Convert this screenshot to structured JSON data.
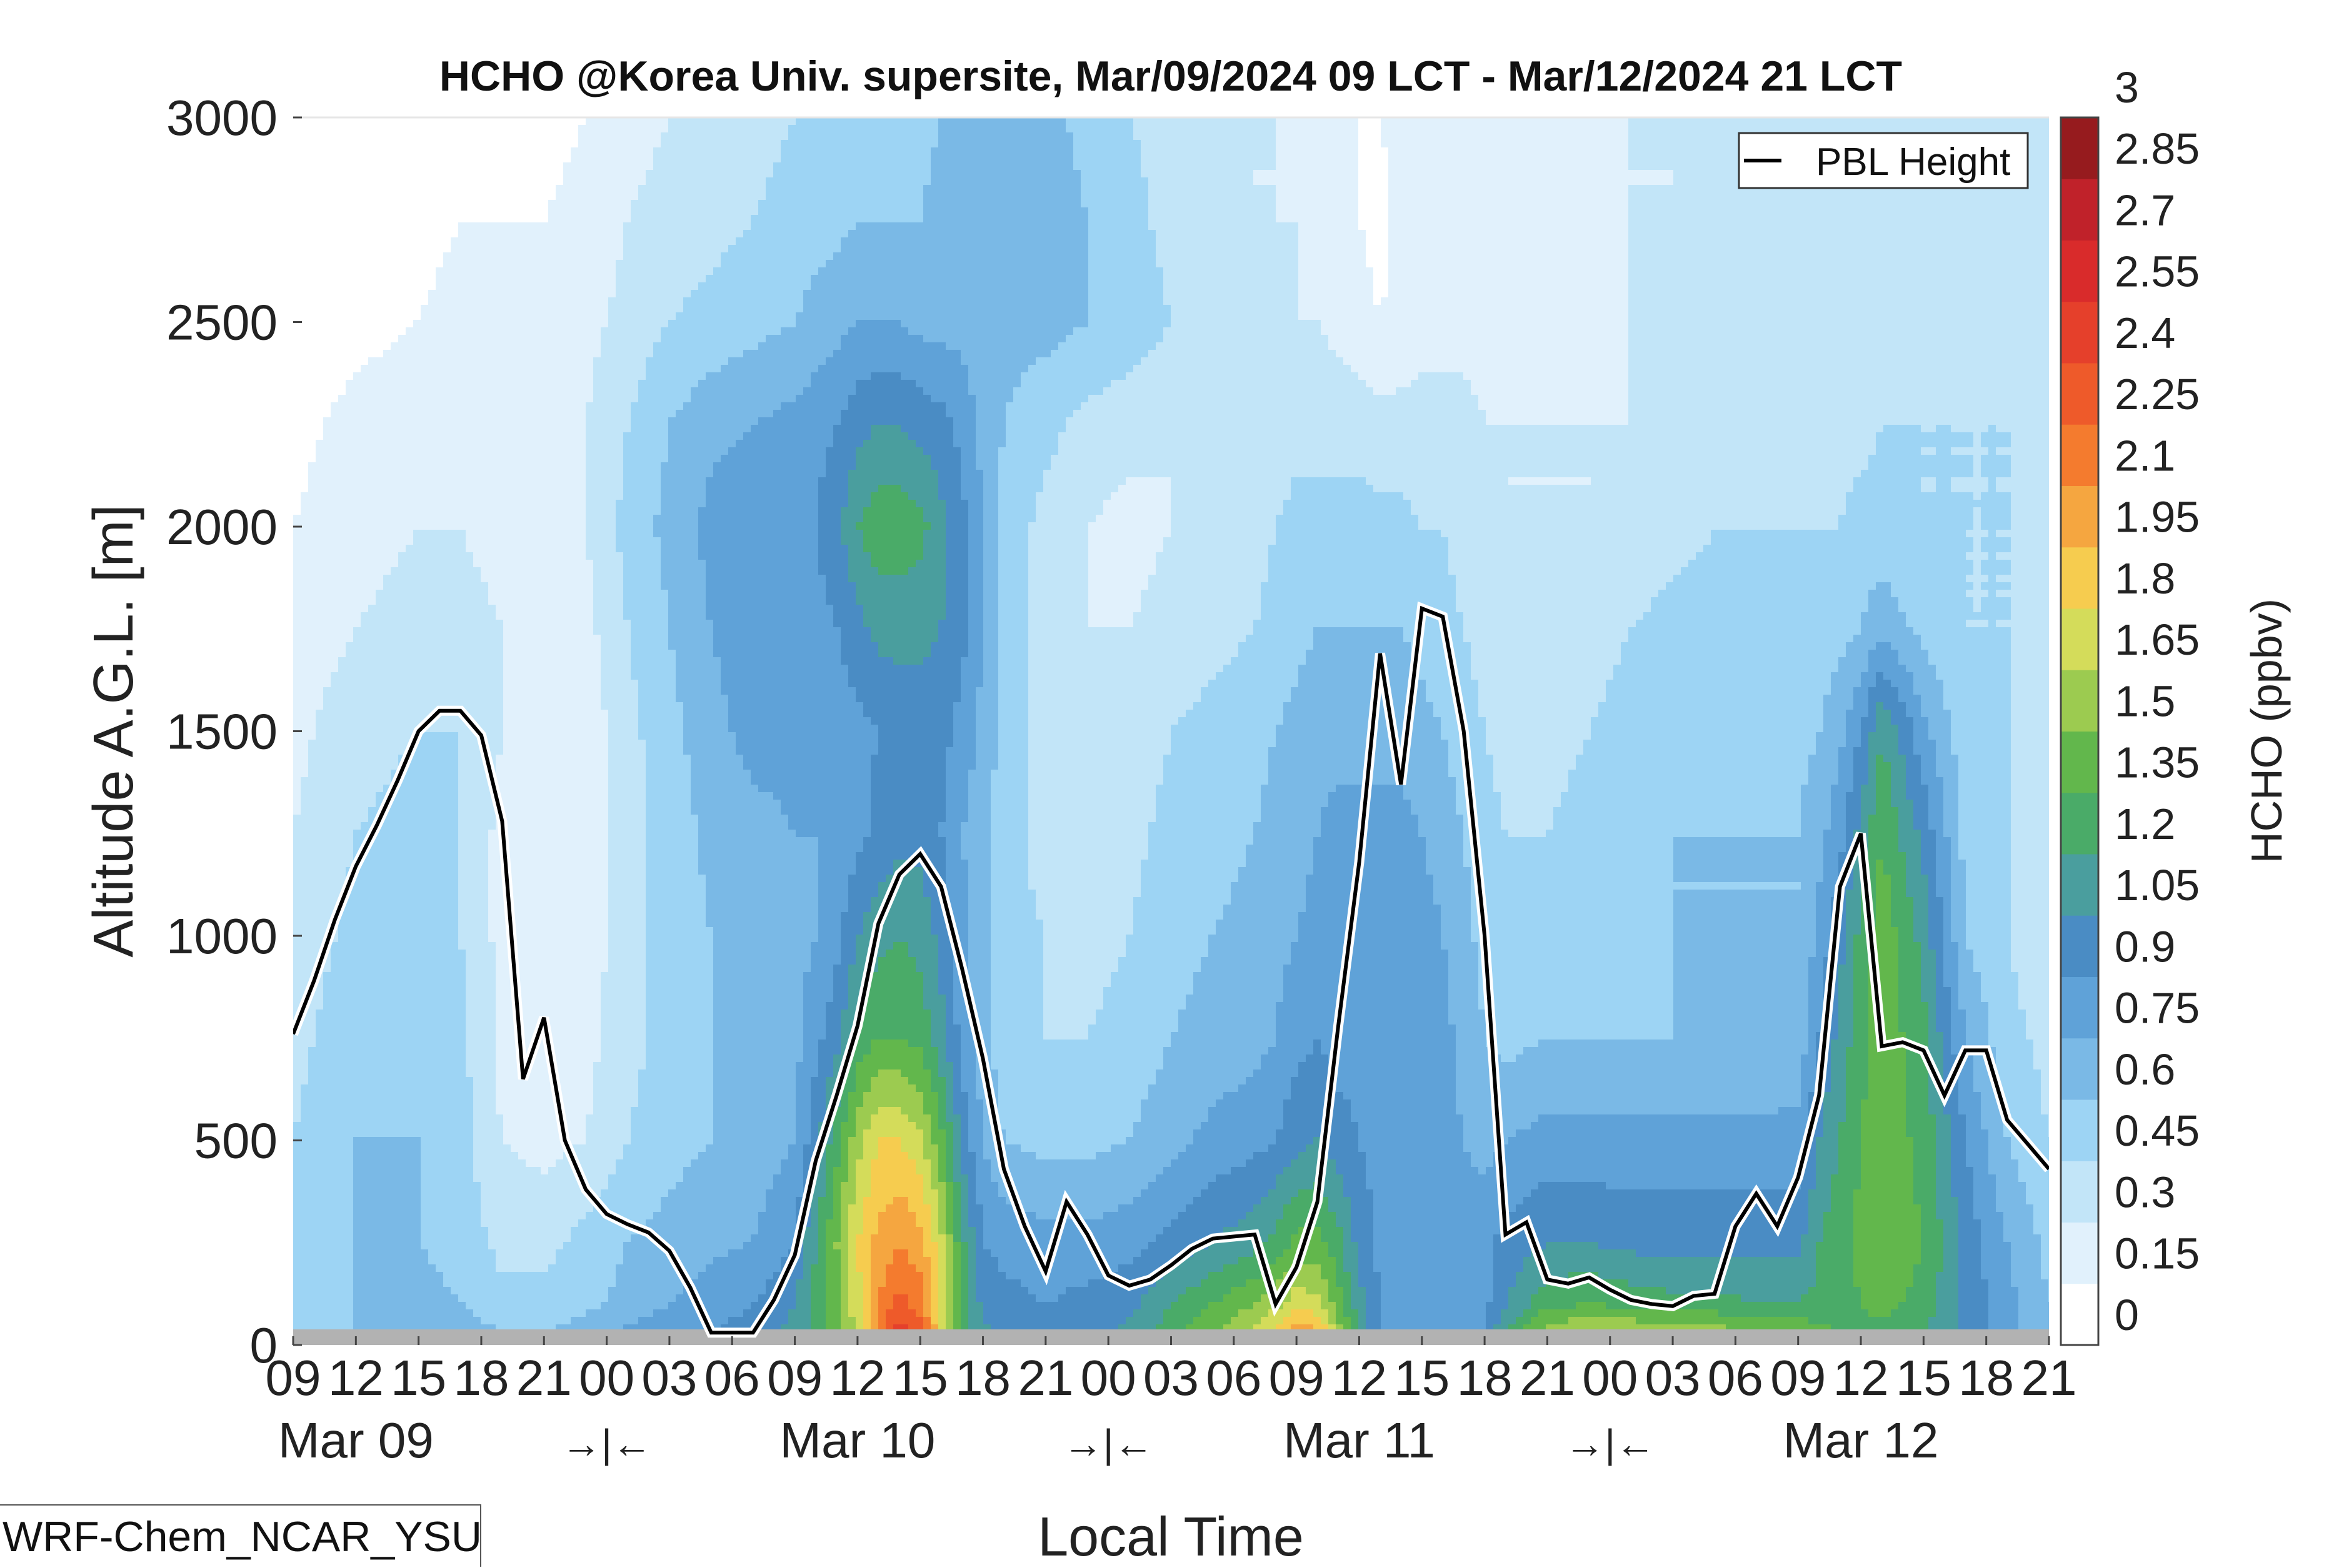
{
  "chart_data": {
    "type": "heatmap",
    "title": "HCHO @Korea Univ. supersite, Mar/09/2024 09 LCT - Mar/12/2024 21 LCT",
    "xlabel": "Local Time",
    "ylabel": "Altitude A.G.L. [m]",
    "colorbar_label": "HCHO (ppbv)",
    "ylim": [
      0,
      3000
    ],
    "yticks": [
      0,
      500,
      1000,
      1500,
      2000,
      2500,
      3000
    ],
    "x_hours_range": [
      0,
      84
    ],
    "xtick_labels": [
      "09",
      "12",
      "15",
      "18",
      "21",
      "00",
      "03",
      "06",
      "09",
      "12",
      "15",
      "18",
      "21",
      "00",
      "03",
      "06",
      "09",
      "12",
      "15",
      "18",
      "21",
      "00",
      "03",
      "06",
      "09",
      "12",
      "15",
      "18",
      "21"
    ],
    "date_labels": [
      {
        "hour": 3,
        "text": "Mar 09"
      },
      {
        "hour": 27,
        "text": "Mar 10"
      },
      {
        "hour": 51,
        "text": "Mar 11"
      },
      {
        "hour": 75,
        "text": "Mar 12"
      }
    ],
    "night_markers": [
      {
        "hour": 15,
        "text": "→|←"
      },
      {
        "hour": 39,
        "text": "→|←"
      },
      {
        "hour": 63,
        "text": "→|←"
      }
    ],
    "colorbar": {
      "levels": [
        0,
        0.15,
        0.3,
        0.45,
        0.6,
        0.75,
        0.9,
        1.05,
        1.2,
        1.35,
        1.5,
        1.65,
        1.8,
        1.95,
        2.1,
        2.25,
        2.4,
        2.55,
        2.7,
        2.85,
        3
      ],
      "tick_labels": [
        "0",
        "0.15",
        "0.3",
        "0.45",
        "0.6",
        "0.75",
        "0.9",
        "1.05",
        "1.2",
        "1.35",
        "1.5",
        "1.65",
        "1.8",
        "1.95",
        "2.1",
        "2.25",
        "2.4",
        "2.55",
        "2.7",
        "2.85",
        "3"
      ],
      "colors": [
        "#ffffff",
        "#e1f1fc",
        "#c2e5f8",
        "#9dd4f4",
        "#7ab9e6",
        "#5fa2d8",
        "#4a8cc4",
        "#4a9e9e",
        "#4aab68",
        "#62b74c",
        "#9ccb50",
        "#d4dc5a",
        "#f6cc4f",
        "#f5a640",
        "#f47b2e",
        "#ee5a2a",
        "#e5402b",
        "#d92b2b",
        "#c0222a",
        "#961b1e"
      ]
    },
    "legend": {
      "position": "top-right",
      "entries": [
        "PBL Height"
      ]
    },
    "pbl_height": {
      "name": "PBL Height",
      "hours": [
        0,
        1,
        2,
        3,
        4,
        5,
        6,
        7,
        8,
        9,
        10,
        11,
        12,
        13,
        14,
        15,
        16,
        17,
        18,
        19,
        20,
        21,
        22,
        23,
        24,
        25,
        26,
        27,
        28,
        29,
        30,
        31,
        32,
        33,
        34,
        35,
        36,
        37,
        38,
        39,
        40,
        41,
        42,
        43,
        44,
        45,
        46,
        47,
        48,
        49,
        50,
        51,
        52,
        53,
        54,
        55,
        56,
        57,
        58,
        59,
        60,
        61,
        62,
        63,
        64,
        65,
        66,
        67,
        68,
        69,
        70,
        71,
        72,
        73,
        74,
        75,
        76,
        77,
        78,
        79,
        80,
        81,
        82,
        83,
        84
      ],
      "values": [
        760,
        890,
        1040,
        1170,
        1270,
        1380,
        1500,
        1550,
        1550,
        1490,
        1280,
        650,
        800,
        500,
        380,
        320,
        295,
        275,
        230,
        140,
        30,
        30,
        30,
        110,
        220,
        450,
        610,
        780,
        1030,
        1150,
        1200,
        1120,
        920,
        700,
        430,
        290,
        180,
        350,
        270,
        170,
        145,
        160,
        195,
        235,
        260,
        265,
        270,
        100,
        190,
        350,
        780,
        1180,
        1690,
        1370,
        1800,
        1780,
        1500,
        1000,
        270,
        300,
        160,
        150,
        165,
        135,
        110,
        100,
        95,
        120,
        125,
        290,
        370,
        290,
        410,
        610,
        1120,
        1250,
        730,
        740,
        720,
        610,
        720,
        720,
        550,
        490,
        430
      ]
    },
    "colorfield": {
      "rows": [
        0,
        25,
        100,
        250,
        500,
        750,
        1000,
        1250,
        1500,
        1750,
        2000,
        2250,
        2500,
        2750,
        3000
      ],
      "cols_hours": [
        0,
        3,
        6,
        8,
        10,
        12,
        14,
        16,
        18,
        20,
        22,
        24,
        25,
        26,
        27,
        28,
        29,
        30,
        31,
        32,
        33,
        34,
        36,
        38,
        40,
        42,
        44,
        46,
        47,
        48,
        49,
        50,
        51,
        52,
        53,
        54,
        55,
        56,
        57,
        58,
        60,
        62,
        64,
        66,
        68,
        70,
        72,
        73,
        74,
        75,
        76,
        78,
        80,
        82,
        84
      ],
      "values": [
        [
          0.5,
          0.6,
          0.7,
          0.7,
          0.6,
          0.6,
          0.7,
          0.8,
          0.85,
          0.9,
          0.95,
          1.1,
          1.25,
          1.4,
          1.7,
          2.2,
          2.5,
          2.3,
          1.8,
          1.3,
          1.1,
          1.0,
          0.95,
          1.0,
          1.1,
          1.3,
          1.5,
          1.7,
          1.85,
          2.15,
          2.0,
          1.6,
          1.2,
          0.9,
          0.85,
          0.8,
          0.8,
          0.8,
          0.9,
          1.2,
          1.6,
          1.7,
          1.7,
          1.6,
          1.6,
          1.5,
          1.5,
          1.4,
          1.35,
          1.3,
          1.3,
          1.2,
          1.0,
          0.8,
          0.6
        ],
        [
          0.5,
          0.6,
          0.7,
          0.7,
          0.6,
          0.6,
          0.7,
          0.8,
          0.85,
          0.9,
          0.95,
          1.1,
          1.25,
          1.4,
          1.7,
          2.2,
          2.5,
          2.3,
          1.8,
          1.3,
          1.1,
          1.0,
          0.95,
          1.0,
          1.1,
          1.3,
          1.5,
          1.7,
          1.85,
          2.15,
          2.0,
          1.6,
          1.2,
          0.9,
          0.85,
          0.8,
          0.8,
          0.8,
          0.9,
          1.2,
          1.6,
          1.7,
          1.7,
          1.6,
          1.6,
          1.5,
          1.5,
          1.4,
          1.35,
          1.3,
          1.3,
          1.2,
          1.0,
          0.8,
          0.6
        ],
        [
          0.5,
          0.6,
          0.65,
          0.6,
          0.5,
          0.5,
          0.55,
          0.65,
          0.75,
          0.85,
          0.9,
          1.05,
          1.25,
          1.45,
          1.75,
          2.1,
          2.3,
          2.2,
          1.8,
          1.3,
          1.0,
          0.95,
          0.9,
          0.95,
          1.0,
          1.2,
          1.35,
          1.5,
          1.6,
          1.75,
          1.7,
          1.4,
          1.1,
          0.9,
          0.85,
          0.8,
          0.8,
          0.8,
          0.85,
          1.05,
          1.3,
          1.35,
          1.3,
          1.25,
          1.25,
          1.2,
          1.2,
          1.25,
          1.3,
          1.35,
          1.4,
          1.3,
          1.0,
          0.8,
          0.6
        ],
        [
          0.5,
          0.6,
          0.6,
          0.55,
          0.4,
          0.4,
          0.5,
          0.6,
          0.65,
          0.7,
          0.75,
          0.9,
          1.2,
          1.5,
          1.8,
          2.0,
          2.1,
          2.0,
          1.7,
          1.25,
          0.9,
          0.85,
          0.8,
          0.8,
          0.85,
          0.95,
          1.05,
          1.15,
          1.25,
          1.4,
          1.4,
          1.25,
          1.0,
          0.85,
          0.85,
          0.8,
          0.8,
          0.8,
          0.85,
          0.95,
          1.05,
          1.05,
          1.0,
          1.0,
          1.0,
          1.0,
          1.0,
          1.2,
          1.3,
          1.4,
          1.45,
          1.35,
          1.0,
          0.75,
          0.55
        ],
        [
          0.45,
          0.6,
          0.6,
          0.5,
          0.3,
          0.25,
          0.3,
          0.45,
          0.55,
          0.6,
          0.65,
          0.75,
          1.0,
          1.3,
          1.6,
          1.8,
          1.8,
          1.7,
          1.4,
          1.0,
          0.75,
          0.6,
          0.55,
          0.55,
          0.6,
          0.7,
          0.8,
          0.85,
          0.9,
          1.0,
          1.05,
          0.95,
          0.9,
          0.85,
          0.85,
          0.8,
          0.8,
          0.75,
          0.7,
          0.75,
          0.8,
          0.8,
          0.8,
          0.8,
          0.8,
          0.8,
          0.8,
          1.05,
          1.2,
          1.35,
          1.45,
          1.3,
          0.9,
          0.6,
          0.45
        ],
        [
          0.4,
          0.55,
          0.6,
          0.5,
          0.25,
          0.2,
          0.25,
          0.4,
          0.5,
          0.6,
          0.65,
          0.7,
          0.85,
          1.0,
          1.25,
          1.35,
          1.35,
          1.3,
          1.1,
          0.85,
          0.65,
          0.5,
          0.45,
          0.45,
          0.5,
          0.6,
          0.65,
          0.7,
          0.75,
          0.85,
          0.9,
          0.85,
          0.85,
          0.85,
          0.85,
          0.8,
          0.8,
          0.7,
          0.6,
          0.55,
          0.6,
          0.6,
          0.6,
          0.6,
          0.6,
          0.6,
          0.65,
          0.9,
          1.1,
          1.3,
          1.45,
          1.25,
          0.75,
          0.5,
          0.4
        ],
        [
          0.35,
          0.5,
          0.55,
          0.45,
          0.25,
          0.15,
          0.2,
          0.4,
          0.5,
          0.6,
          0.65,
          0.7,
          0.75,
          0.85,
          1.05,
          1.15,
          1.2,
          1.15,
          1.0,
          0.8,
          0.65,
          0.5,
          0.45,
          0.4,
          0.45,
          0.55,
          0.6,
          0.65,
          0.7,
          0.75,
          0.8,
          0.85,
          0.85,
          0.85,
          0.85,
          0.8,
          0.75,
          0.65,
          0.55,
          0.5,
          0.5,
          0.5,
          0.55,
          0.6,
          0.6,
          0.6,
          0.6,
          0.8,
          1.0,
          1.25,
          1.45,
          1.15,
          0.6,
          0.45,
          0.35
        ],
        [
          0.3,
          0.45,
          0.5,
          0.45,
          0.25,
          0.15,
          0.2,
          0.4,
          0.5,
          0.65,
          0.7,
          0.75,
          0.75,
          0.8,
          0.85,
          0.95,
          1.0,
          1.0,
          0.9,
          0.75,
          0.65,
          0.5,
          0.4,
          0.35,
          0.4,
          0.5,
          0.55,
          0.6,
          0.65,
          0.7,
          0.75,
          0.8,
          0.8,
          0.8,
          0.8,
          0.75,
          0.7,
          0.6,
          0.5,
          0.45,
          0.45,
          0.5,
          0.55,
          0.6,
          0.6,
          0.6,
          0.6,
          0.7,
          0.85,
          1.1,
          1.35,
          1.0,
          0.55,
          0.45,
          0.35
        ],
        [
          0.25,
          0.4,
          0.45,
          0.45,
          0.3,
          0.15,
          0.2,
          0.4,
          0.55,
          0.7,
          0.8,
          0.8,
          0.8,
          0.8,
          0.85,
          0.9,
          0.95,
          0.95,
          0.95,
          0.85,
          0.7,
          0.55,
          0.4,
          0.3,
          0.35,
          0.45,
          0.5,
          0.55,
          0.6,
          0.65,
          0.7,
          0.7,
          0.7,
          0.7,
          0.7,
          0.65,
          0.6,
          0.5,
          0.45,
          0.4,
          0.4,
          0.45,
          0.5,
          0.55,
          0.55,
          0.55,
          0.55,
          0.6,
          0.7,
          0.9,
          1.2,
          0.8,
          0.5,
          0.45,
          0.35
        ],
        [
          0.2,
          0.3,
          0.35,
          0.35,
          0.3,
          0.15,
          0.25,
          0.45,
          0.6,
          0.75,
          0.85,
          0.85,
          0.85,
          0.9,
          1.0,
          1.1,
          1.1,
          1.1,
          1.05,
          0.95,
          0.75,
          0.55,
          0.4,
          0.3,
          0.3,
          0.35,
          0.4,
          0.45,
          0.5,
          0.55,
          0.6,
          0.6,
          0.6,
          0.6,
          0.6,
          0.55,
          0.5,
          0.45,
          0.4,
          0.35,
          0.35,
          0.4,
          0.45,
          0.5,
          0.5,
          0.5,
          0.5,
          0.5,
          0.55,
          0.6,
          0.7,
          0.55,
          0.45,
          0.45,
          0.35
        ],
        [
          0.15,
          0.25,
          0.3,
          0.3,
          0.25,
          0.2,
          0.3,
          0.5,
          0.65,
          0.8,
          0.9,
          0.9,
          0.9,
          1.0,
          1.2,
          1.3,
          1.3,
          1.25,
          1.1,
          0.95,
          0.75,
          0.55,
          0.4,
          0.3,
          0.25,
          0.3,
          0.35,
          0.4,
          0.45,
          0.5,
          0.5,
          0.5,
          0.5,
          0.5,
          0.5,
          0.45,
          0.45,
          0.4,
          0.35,
          0.3,
          0.3,
          0.3,
          0.35,
          0.4,
          0.45,
          0.45,
          0.45,
          0.45,
          0.45,
          0.5,
          0.5,
          0.45,
          0.45,
          0.45,
          0.35
        ],
        [
          0.1,
          0.2,
          0.25,
          0.25,
          0.25,
          0.2,
          0.3,
          0.45,
          0.6,
          0.7,
          0.75,
          0.8,
          0.85,
          0.9,
          1.0,
          1.05,
          1.05,
          1.0,
          0.95,
          0.85,
          0.7,
          0.6,
          0.5,
          0.4,
          0.35,
          0.3,
          0.3,
          0.3,
          0.35,
          0.4,
          0.4,
          0.4,
          0.4,
          0.35,
          0.35,
          0.35,
          0.35,
          0.35,
          0.3,
          0.3,
          0.3,
          0.3,
          0.3,
          0.35,
          0.35,
          0.4,
          0.4,
          0.4,
          0.4,
          0.4,
          0.45,
          0.45,
          0.45,
          0.45,
          0.35
        ],
        [
          0.05,
          0.1,
          0.15,
          0.2,
          0.2,
          0.2,
          0.25,
          0.35,
          0.45,
          0.5,
          0.55,
          0.6,
          0.65,
          0.7,
          0.75,
          0.75,
          0.75,
          0.7,
          0.7,
          0.7,
          0.65,
          0.65,
          0.65,
          0.6,
          0.55,
          0.45,
          0.35,
          0.3,
          0.3,
          0.3,
          0.3,
          0.25,
          0.2,
          0.15,
          0.2,
          0.25,
          0.25,
          0.25,
          0.25,
          0.25,
          0.25,
          0.25,
          0.3,
          0.3,
          0.35,
          0.35,
          0.35,
          0.35,
          0.35,
          0.4,
          0.4,
          0.4,
          0.4,
          0.4,
          0.35
        ],
        [
          0.0,
          0.05,
          0.1,
          0.15,
          0.15,
          0.15,
          0.2,
          0.3,
          0.35,
          0.4,
          0.45,
          0.5,
          0.55,
          0.55,
          0.6,
          0.6,
          0.6,
          0.6,
          0.65,
          0.7,
          0.75,
          0.75,
          0.7,
          0.6,
          0.5,
          0.4,
          0.35,
          0.3,
          0.3,
          0.3,
          0.25,
          0.2,
          0.15,
          0.1,
          0.2,
          0.25,
          0.25,
          0.25,
          0.2,
          0.2,
          0.2,
          0.25,
          0.3,
          0.3,
          0.35,
          0.35,
          0.35,
          0.35,
          0.35,
          0.35,
          0.35,
          0.4,
          0.4,
          0.4,
          0.35
        ],
        [
          0.0,
          0.0,
          0.05,
          0.1,
          0.1,
          0.1,
          0.15,
          0.25,
          0.3,
          0.35,
          0.4,
          0.45,
          0.45,
          0.45,
          0.5,
          0.5,
          0.5,
          0.55,
          0.6,
          0.65,
          0.7,
          0.7,
          0.65,
          0.55,
          0.45,
          0.4,
          0.35,
          0.3,
          0.3,
          0.25,
          0.2,
          0.15,
          0.15,
          0.15,
          0.2,
          0.2,
          0.2,
          0.2,
          0.2,
          0.2,
          0.2,
          0.25,
          0.3,
          0.3,
          0.3,
          0.35,
          0.35,
          0.35,
          0.35,
          0.35,
          0.35,
          0.35,
          0.35,
          0.35,
          0.35
        ]
      ]
    },
    "model_label": "WRF-Chem_NCAR_YSU"
  }
}
